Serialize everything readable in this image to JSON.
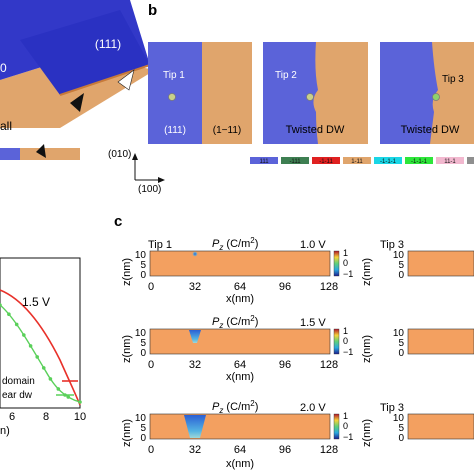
{
  "colors": {
    "blue": "#5b63d9",
    "orange": "#e0a56c",
    "heatmap_base": "#f3a060",
    "red_curve": "#e8312a",
    "green_curve": "#5ad05a"
  },
  "panel_a": {
    "domain_label": "(111)",
    "cut_text": "all",
    "cut_left": "0"
  },
  "panel_b": {
    "letter": "b",
    "tips": [
      {
        "tip": "Tip 1",
        "bottom_left": "(111)",
        "bottom_right": "(1−11)"
      },
      {
        "tip": "Tip 2",
        "caption": "Twisted DW"
      },
      {
        "tip": "Tip 3",
        "caption": "Twisted DW"
      }
    ],
    "axis_y": "(010)",
    "axis_x": "(100)",
    "legend": [
      {
        "label": "111",
        "color": "#5b63d9"
      },
      {
        "label": "-111",
        "color": "#3e7f52"
      },
      {
        "label": "-1-11",
        "color": "#e02020"
      },
      {
        "label": "1-11",
        "color": "#e0a56c"
      },
      {
        "label": "-1-1-1",
        "color": "#19d6e6"
      },
      {
        "label": "-1-1-1",
        "color": "#2ee63a"
      },
      {
        "label": "11-1",
        "color": "#f2b8cf"
      },
      {
        "label": "1-1-1",
        "color": "#8f8f8f"
      }
    ]
  },
  "panel_left": {
    "voltage": "1.5 V",
    "legend": [
      "domain",
      "ear dw"
    ],
    "xticks": [
      "6",
      "8",
      "10"
    ],
    "xlabel_partial": "n)"
  },
  "panel_c": {
    "letter": "c",
    "quantity": "P",
    "quantity_sub": "z",
    "unit": " (C/m",
    "unit_sup": "2",
    "unit_close": ")",
    "ylabel": "z(nm)",
    "xlabel": "x(nm)",
    "yticks": [
      "10",
      "5",
      "0"
    ],
    "xticks": [
      "0",
      "32",
      "64",
      "96",
      "128"
    ],
    "colorbar_ticks": [
      "1",
      "0",
      "−1"
    ],
    "rows": [
      {
        "left_tip": "Tip 1",
        "voltage": "1.0 V",
        "right_tip": "Tip 3"
      },
      {
        "left_tip": "",
        "voltage": "1.5 V",
        "right_tip": ""
      },
      {
        "left_tip": "",
        "voltage": "2.0 V",
        "right_tip": "Tip 3"
      }
    ]
  }
}
